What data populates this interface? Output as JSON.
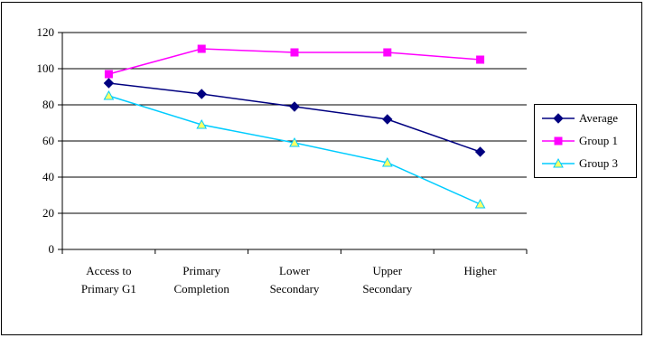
{
  "chart_data": {
    "type": "line",
    "categories": [
      [
        "Access to",
        "Primary G1"
      ],
      [
        "Primary",
        "Completion"
      ],
      [
        "Lower",
        "Secondary"
      ],
      [
        "Upper",
        "Secondary"
      ],
      [
        "Higher"
      ]
    ],
    "ylim": [
      0,
      120
    ],
    "yticks": [
      0,
      20,
      40,
      60,
      80,
      100,
      120
    ],
    "grid": true,
    "legend_position": "right",
    "series": [
      {
        "name": "Average",
        "values": [
          92,
          86,
          79,
          72,
          54
        ],
        "color": "#000080",
        "marker": "diamond"
      },
      {
        "name": "Group 1",
        "values": [
          97,
          111,
          109,
          109,
          105
        ],
        "color": "#ff00ff",
        "marker": "square"
      },
      {
        "name": "Group 3",
        "values": [
          85,
          69,
          59,
          48,
          25
        ],
        "color": "#00ccff",
        "marker": "triangle"
      }
    ]
  }
}
